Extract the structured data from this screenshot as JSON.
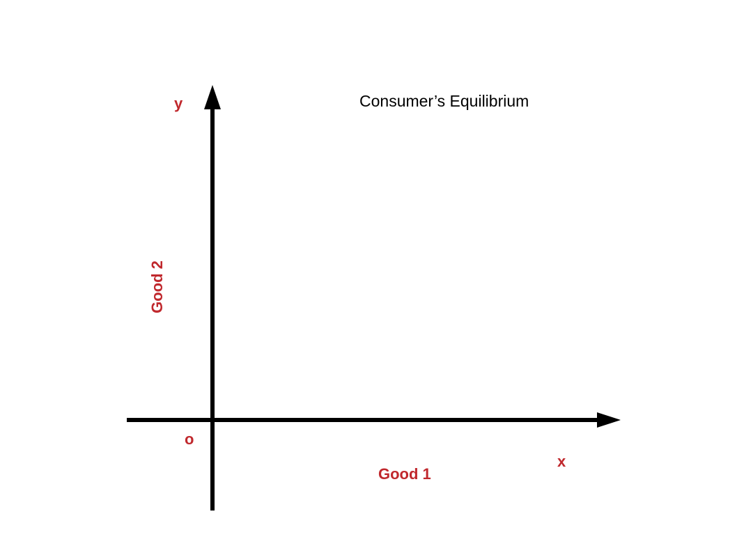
{
  "title": "Consumer’s Equilibrium",
  "axes": {
    "y_letter": "y",
    "x_letter": "x",
    "origin": "o",
    "x_label": "Good 1",
    "y_label": "Good 2"
  },
  "colors": {
    "axis": "#000000",
    "label": "#c0282d",
    "title": "#000000"
  }
}
